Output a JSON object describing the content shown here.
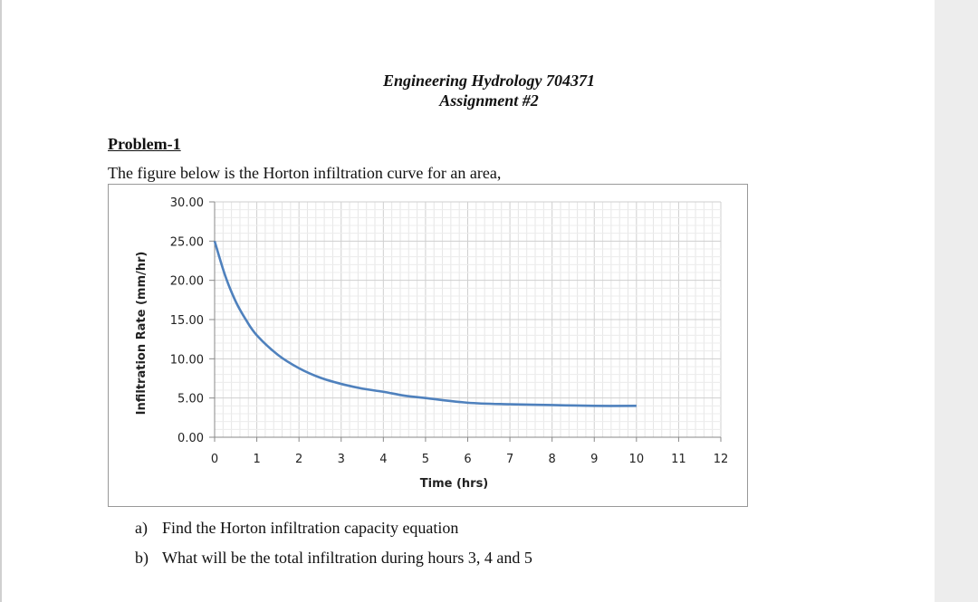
{
  "header": {
    "line1": "Engineering Hydrology 704371",
    "line2": "Assignment #2"
  },
  "problem": {
    "title": "Problem-1",
    "intro": "The figure below is the Horton infiltration curve for an area,"
  },
  "questions": [
    {
      "label": "a)",
      "text": "Find the Horton infiltration capacity equation"
    },
    {
      "label": "b)",
      "text": "What will be the total infiltration during hours 3, 4 and 5"
    }
  ],
  "chart_data": {
    "type": "line",
    "title": "",
    "xlabel": "Time (hrs)",
    "ylabel": "Infiltration Rate (mm/hr)",
    "xlim": [
      0,
      12
    ],
    "ylim": [
      0,
      30
    ],
    "xticks": [
      0,
      1,
      2,
      3,
      4,
      5,
      6,
      7,
      8,
      9,
      10,
      11,
      12
    ],
    "yticks": [
      "0.00",
      "5.00",
      "10.00",
      "15.00",
      "20.00",
      "25.00",
      "30.00"
    ],
    "grid": true,
    "legend": "none",
    "line_color": "#4f81bd",
    "series": [
      {
        "x": [
          0,
          0.25,
          0.5,
          0.75,
          1,
          1.5,
          2,
          2.5,
          3,
          3.5,
          4,
          4.5,
          5,
          6,
          7,
          8,
          9,
          10
        ],
        "y": [
          25.0,
          20.6,
          17.3,
          14.9,
          13.0,
          10.5,
          8.8,
          7.6,
          6.8,
          6.2,
          5.8,
          5.3,
          5.0,
          4.4,
          4.2,
          4.1,
          4.0,
          4.0
        ]
      }
    ]
  }
}
